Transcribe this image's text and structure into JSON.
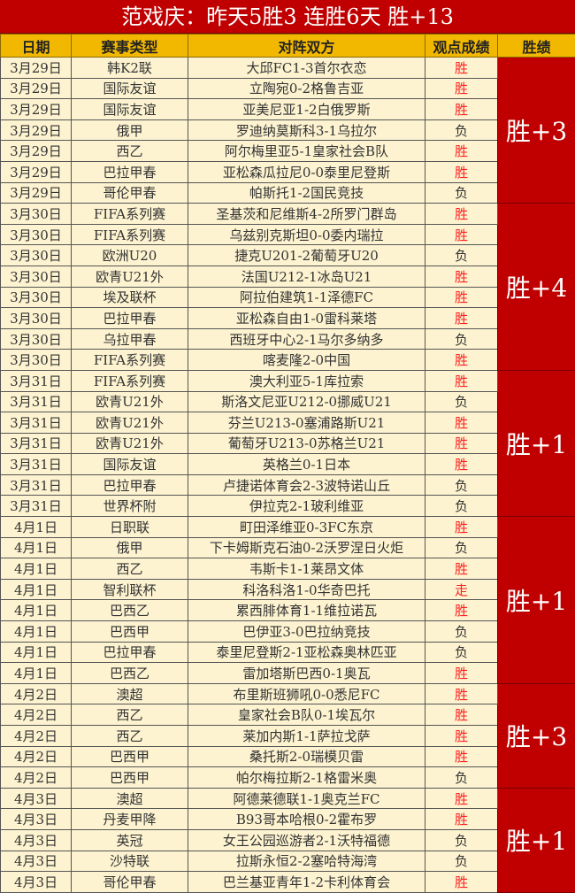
{
  "title": "范戏庆：昨天5胜3  连胜6天  胜+13",
  "headers": [
    "日期",
    "赛事类型",
    "对阵双方",
    "观点成绩",
    "胜绩"
  ],
  "colors": {
    "title_bg": "#c00000",
    "header_bg": "#f2b800",
    "row_bg": "#fdf3d0",
    "win_text": "#ff2020",
    "record_bg": "#c00000"
  },
  "groups": [
    {
      "record": "胜+3",
      "rows": [
        [
          "3月29日",
          "韩K2联",
          "大邱FC1-3首尔衣恋",
          "胜"
        ],
        [
          "3月29日",
          "国际友谊",
          "立陶宛0-2格鲁吉亚",
          "胜"
        ],
        [
          "3月29日",
          "国际友谊",
          "亚美尼亚1-2白俄罗斯",
          "胜"
        ],
        [
          "3月29日",
          "俄甲",
          "罗迪纳莫斯科3-1乌拉尔",
          "负"
        ],
        [
          "3月29日",
          "西乙",
          "阿尔梅里亚5-1皇家社会B队",
          "胜"
        ],
        [
          "3月29日",
          "巴拉甲春",
          "亚松森瓜拉尼0-0泰里尼登斯",
          "胜"
        ],
        [
          "3月29日",
          "哥伦甲春",
          "帕斯托1-2国民竞技",
          "负"
        ]
      ]
    },
    {
      "record": "胜+4",
      "rows": [
        [
          "3月30日",
          "FIFA系列赛",
          "圣基茨和尼维斯4-2所罗门群岛",
          "胜"
        ],
        [
          "3月30日",
          "FIFA系列赛",
          "乌兹别克斯坦0-0委内瑞拉",
          "胜"
        ],
        [
          "3月30日",
          "欧洲U20",
          "捷克U201-2葡萄牙U20",
          "负"
        ],
        [
          "3月30日",
          "欧青U21外",
          "法国U212-1冰岛U21",
          "胜"
        ],
        [
          "3月30日",
          "埃及联杯",
          "阿拉伯建筑1-1泽德FC",
          "胜"
        ],
        [
          "3月30日",
          "巴拉甲春",
          "亚松森自由1-0雷科莱塔",
          "胜"
        ],
        [
          "3月30日",
          "乌拉甲春",
          "西班牙中心2-1马尔多纳多",
          "负"
        ],
        [
          "3月30日",
          "FIFA系列赛",
          "喀麦隆2-0中国",
          "胜"
        ]
      ]
    },
    {
      "record": "胜+1",
      "rows": [
        [
          "3月31日",
          "FIFA系列赛",
          "澳大利亚5-1库拉索",
          "胜"
        ],
        [
          "3月31日",
          "欧青U21外",
          "斯洛文尼亚U212-0挪威U21",
          "负"
        ],
        [
          "3月31日",
          "欧青U21外",
          "芬兰U213-0塞浦路斯U21",
          "胜"
        ],
        [
          "3月31日",
          "欧青U21外",
          "葡萄牙U213-0苏格兰U21",
          "胜"
        ],
        [
          "3月31日",
          "国际友谊",
          "英格兰0-1日本",
          "胜"
        ],
        [
          "3月31日",
          "巴拉甲春",
          "卢捷诺体育会2-3波特诺山丘",
          "负"
        ],
        [
          "3月31日",
          "世界杯附",
          "伊拉克2-1玻利维亚",
          "负"
        ]
      ]
    },
    {
      "record": "胜+1",
      "rows": [
        [
          "4月1日",
          "日职联",
          "町田泽维亚0-3FC东京",
          "胜"
        ],
        [
          "4月1日",
          "俄甲",
          "下卡姆斯克石油0-2沃罗涅日火炬",
          "负"
        ],
        [
          "4月1日",
          "西乙",
          "韦斯卡1-1莱昂文体",
          "胜"
        ],
        [
          "4月1日",
          "智利联杯",
          "科洛科洛1-0华奇巴托",
          "走"
        ],
        [
          "4月1日",
          "巴西乙",
          "累西腓体育1-1维拉诺瓦",
          "胜"
        ],
        [
          "4月1日",
          "巴西甲",
          "巴伊亚3-0巴拉纳竞技",
          "负"
        ],
        [
          "4月1日",
          "巴拉甲春",
          "泰里尼登斯2-1亚松森奥林匹亚",
          "负"
        ],
        [
          "4月1日",
          "巴西乙",
          "雷加塔斯巴西0-1奥瓦",
          "胜"
        ]
      ]
    },
    {
      "record": "胜+3",
      "rows": [
        [
          "4月2日",
          "澳超",
          "布里斯班狮吼0-0悉尼FC",
          "胜"
        ],
        [
          "4月2日",
          "西乙",
          "皇家社会B队0-1埃瓦尔",
          "胜"
        ],
        [
          "4月2日",
          "西乙",
          "莱加内斯1-1萨拉戈萨",
          "胜"
        ],
        [
          "4月2日",
          "巴西甲",
          "桑托斯2-0瑞模贝雷",
          "胜"
        ],
        [
          "4月2日",
          "巴西甲",
          "帕尔梅拉斯2-1格雷米奥",
          "负"
        ]
      ]
    },
    {
      "record": "胜+1",
      "rows": [
        [
          "4月3日",
          "澳超",
          "阿德莱德联1-1奥克兰FC",
          "胜"
        ],
        [
          "4月3日",
          "丹麦甲降",
          "B93哥本哈根0-2霍布罗",
          "胜"
        ],
        [
          "4月3日",
          "英冠",
          "女王公园巡游者2-1沃特福德",
          "负"
        ],
        [
          "4月3日",
          "沙特联",
          "拉斯永恒2-2塞哈特海湾",
          "负"
        ],
        [
          "4月3日",
          "哥伦甲春",
          "巴兰基亚青年1-2卡利体育会",
          "胜"
        ]
      ]
    }
  ]
}
